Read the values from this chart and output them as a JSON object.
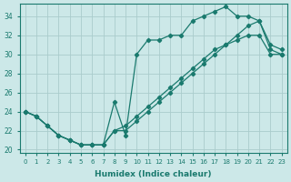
{
  "xlabel": "Humidex (Indice chaleur)",
  "x": [
    0,
    1,
    2,
    3,
    4,
    5,
    6,
    7,
    8,
    9,
    10,
    11,
    12,
    13,
    14,
    15,
    16,
    17,
    18,
    19,
    20,
    21,
    22,
    23
  ],
  "line1_y": [
    24,
    23.5,
    22.5,
    21.5,
    21,
    20.5,
    20.5,
    20.5,
    25,
    21.5,
    30,
    31.5,
    31.5,
    32,
    32,
    33.5,
    34,
    34.5,
    35,
    34,
    34,
    33.5,
    31,
    30.5
  ],
  "line2_y": [
    24,
    23.5,
    22.5,
    21.5,
    21,
    20.5,
    20.5,
    20.5,
    22,
    22,
    23,
    24,
    25,
    26,
    27,
    28,
    29,
    30,
    31,
    32,
    33,
    33.5,
    30.5,
    30
  ],
  "line3_y": [
    24,
    23.5,
    22.5,
    21.5,
    21,
    20.5,
    20.5,
    20.5,
    22,
    22.5,
    23.5,
    24.5,
    25.5,
    26.5,
    27.5,
    28.5,
    29.5,
    30.5,
    31,
    31.5,
    32,
    32,
    30,
    30
  ],
  "line_color": "#1a7a6e",
  "bg_color": "#cce8e8",
  "grid_color": "#aacccc",
  "ylim": [
    20,
    35
  ],
  "xlim": [
    -0.5,
    23.5
  ],
  "yticks": [
    20,
    22,
    24,
    26,
    28,
    30,
    32,
    34
  ],
  "xticks": [
    0,
    1,
    2,
    3,
    4,
    5,
    6,
    7,
    8,
    9,
    10,
    11,
    12,
    13,
    14,
    15,
    16,
    17,
    18,
    19,
    20,
    21,
    22,
    23
  ]
}
